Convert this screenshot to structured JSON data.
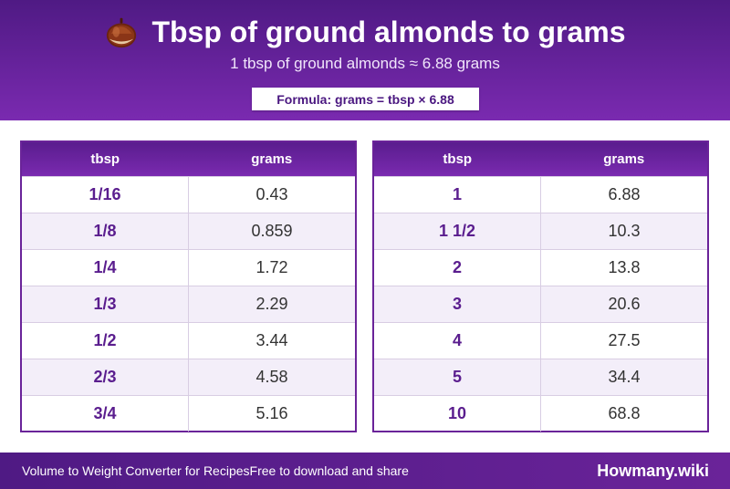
{
  "header": {
    "icon": "chestnut-icon",
    "title": "Tbsp of ground almonds to grams",
    "subtitle": "1 tbsp of ground almonds ≈ 6.88 grams",
    "formula": "Formula: grams = tbsp × 6.88"
  },
  "tables": {
    "left": {
      "headers": [
        "tbsp",
        "grams"
      ],
      "rows": [
        {
          "tbsp": "1/16",
          "grams": "0.43"
        },
        {
          "tbsp": "1/8",
          "grams": "0.859"
        },
        {
          "tbsp": "1/4",
          "grams": "1.72"
        },
        {
          "tbsp": "1/3",
          "grams": "2.29"
        },
        {
          "tbsp": "1/2",
          "grams": "3.44"
        },
        {
          "tbsp": "2/3",
          "grams": "4.58"
        },
        {
          "tbsp": "3/4",
          "grams": "5.16"
        }
      ]
    },
    "right": {
      "headers": [
        "tbsp",
        "grams"
      ],
      "rows": [
        {
          "tbsp": "1",
          "grams": "6.88"
        },
        {
          "tbsp": "1 1/2",
          "grams": "10.3"
        },
        {
          "tbsp": "2",
          "grams": "13.8"
        },
        {
          "tbsp": "3",
          "grams": "20.6"
        },
        {
          "tbsp": "4",
          "grams": "27.5"
        },
        {
          "tbsp": "5",
          "grams": "34.4"
        },
        {
          "tbsp": "10",
          "grams": "68.8"
        }
      ]
    }
  },
  "footer": {
    "left_text": "Volume to Weight Converter for Recipes",
    "middle_text": "Free to download and share",
    "brand": "Howmany.wiki"
  },
  "colors": {
    "header_bg": "#5a1d8e",
    "accent": "#7a2ab0",
    "row_alt": "#f3eef9"
  }
}
